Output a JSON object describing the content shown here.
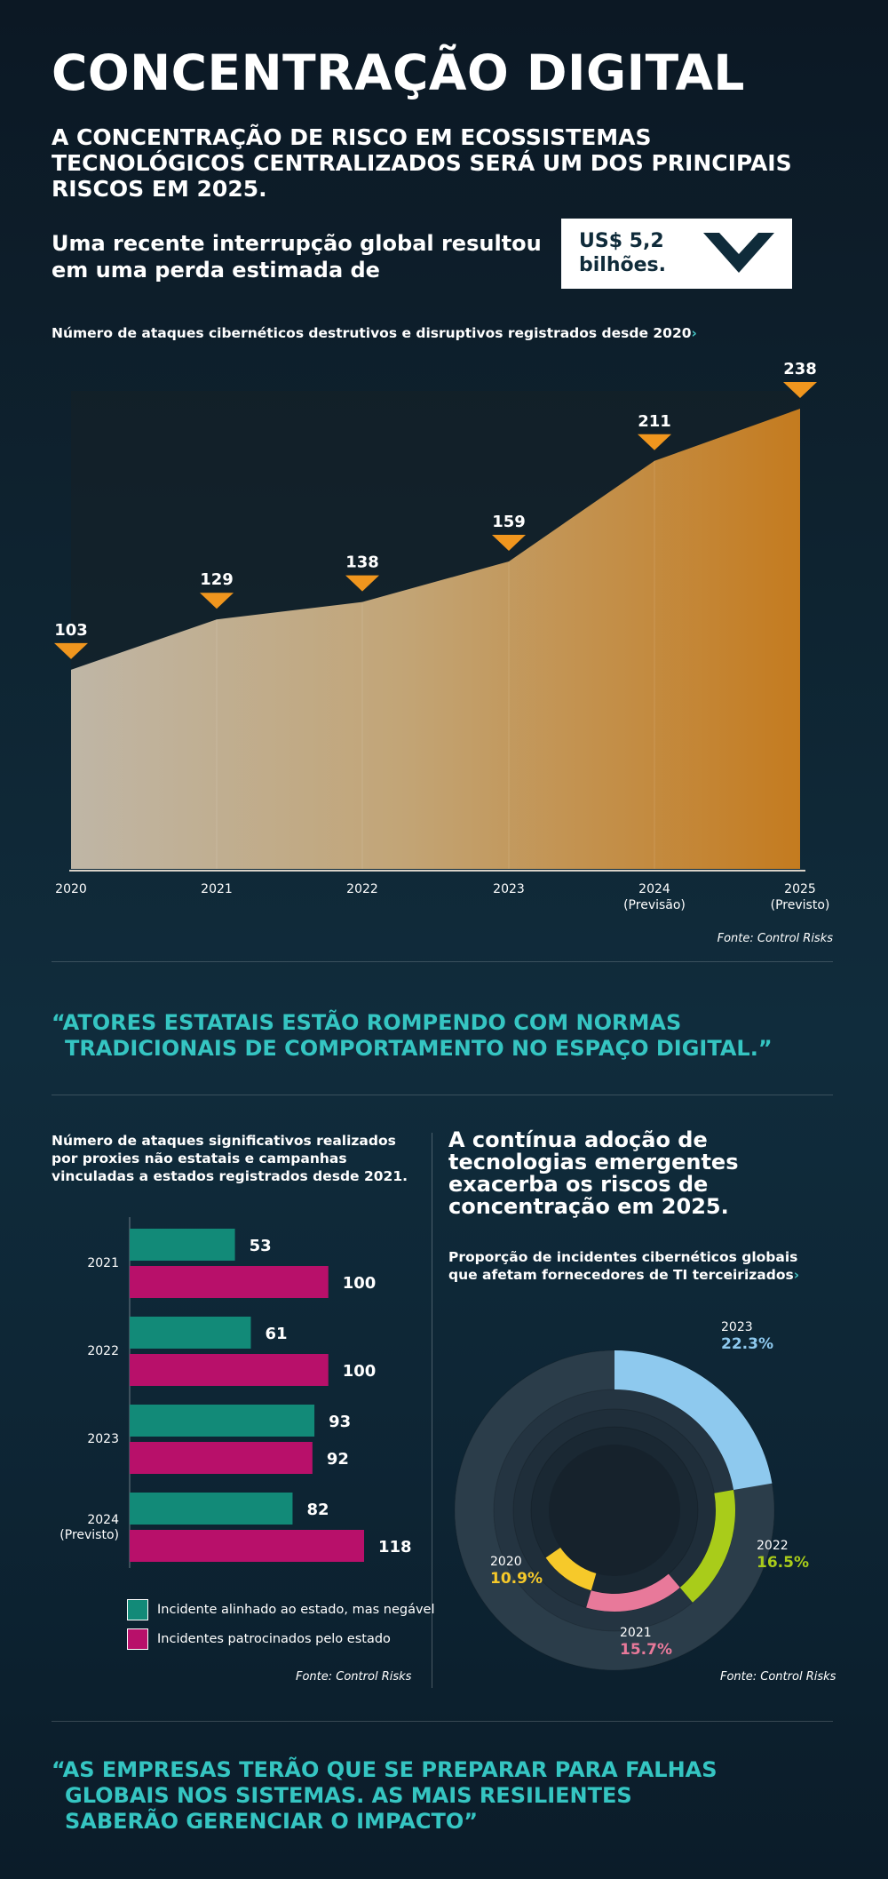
{
  "header": {
    "title": "CONCENTRAÇÃO DIGITAL",
    "subtitle": "A CONCENTRAÇÃO DE RISCO EM ECOSSISTEMAS TECNOLÓGICOS CENTRALIZADOS SERÁ UM DOS PRINCIPAIS RISCOS EM 2025.",
    "lead": "Uma recente interrupção global resultou em uma perda estimada de",
    "loss_value": "US$ 5,2",
    "loss_unit": "bilhões."
  },
  "colors": {
    "accent_orange": "#f0961e",
    "teal": "#128a78",
    "magenta": "#b8106a",
    "quote_teal": "#35c5c2",
    "ring_blue": "#8ec9ee",
    "ring_green": "#a9cc1a",
    "ring_pink": "#e8799a",
    "ring_yellow": "#f6c92a"
  },
  "chart_data": [
    {
      "type": "area",
      "title": "Número de ataques cibernéticos destrutivos e disruptivos registrados desde 2020",
      "title_arrow": "›",
      "categories": [
        "2020",
        "2021",
        "2022",
        "2023",
        "2024",
        "2025"
      ],
      "category_notes": [
        "",
        "",
        "",
        "",
        "(Previsão)",
        "(Previsto)"
      ],
      "values": [
        103,
        129,
        138,
        159,
        211,
        238
      ],
      "ylim": [
        0,
        238
      ],
      "grid": false,
      "source": "Fonte: Control Risks"
    },
    {
      "type": "bar",
      "orientation": "horizontal",
      "title": "Número de ataques significativos realizados por proxies não estatais e campanhas vinculadas a estados registrados desde 2021.",
      "categories": [
        "2021",
        "2022",
        "2023",
        "2024"
      ],
      "category_notes": [
        "",
        "",
        "",
        "(Previsto)"
      ],
      "series": [
        {
          "name": "Incidente alinhado ao estado, mas negável",
          "color": "#128a78",
          "values": [
            53,
            61,
            93,
            82
          ]
        },
        {
          "name": "Incidentes patrocinados pelo estado",
          "color": "#b8106a",
          "values": [
            100,
            100,
            92,
            118
          ]
        }
      ],
      "xlim": [
        0,
        118
      ],
      "legend": "bottom",
      "source": "Fonte: Control Risks"
    },
    {
      "type": "pie",
      "style": "concentric-rings",
      "title": "Proporção de incidentes cibernéticos globais que afetam fornecedores de TI terceirizados",
      "title_arrow": "›",
      "categories": [
        "2023",
        "2022",
        "2021",
        "2020"
      ],
      "values": [
        22.3,
        16.5,
        15.7,
        10.9
      ],
      "labels": [
        "22.3%",
        "16.5%",
        "15.7%",
        "10.9%"
      ],
      "colors": [
        "#8ec9ee",
        "#a9cc1a",
        "#e8799a",
        "#f6c92a"
      ],
      "source": "Fonte: Control Risks"
    }
  ],
  "quotes": {
    "q1_line1": "“ATORES ESTATAIS ESTÃO ROMPENDO COM NORMAS",
    "q1_line2": "TRADICIONAIS DE COMPORTAMENTO NO ESPAÇO DIGITAL.”",
    "q2_line1": "“AS EMPRESAS TERÃO QUE SE PREPARAR PARA FALHAS",
    "q2_line2": "GLOBAIS NOS SISTEMAS. AS MAIS RESILIENTES",
    "q2_line3": "SABERÃO GERENCIAR O IMPACTO”"
  },
  "section2": {
    "right_title": "A contínua adoção de tecnologias emergentes exacerba os riscos de concentração em 2025."
  }
}
